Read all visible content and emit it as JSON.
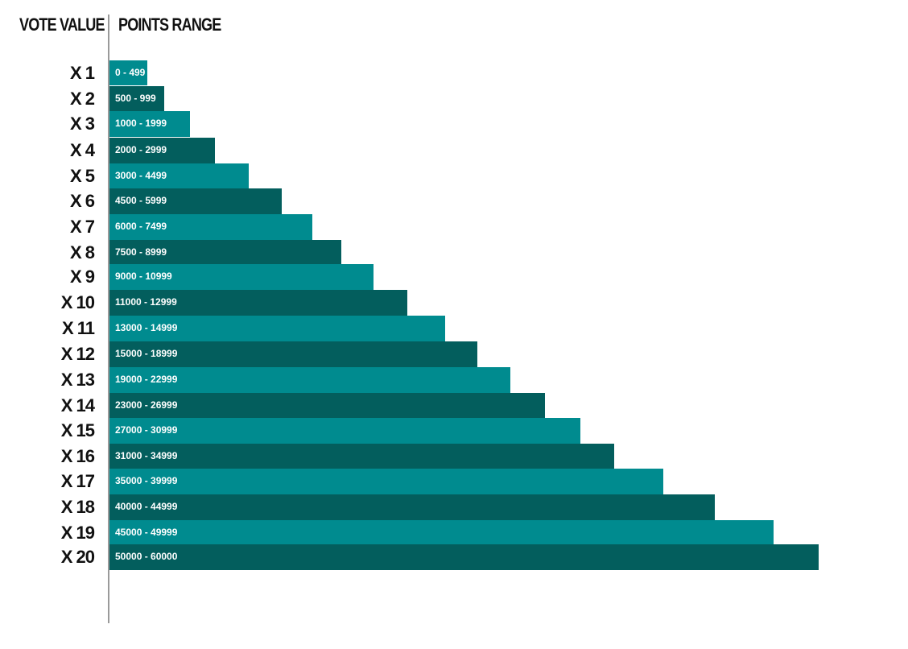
{
  "chart_data": {
    "type": "bar",
    "orientation": "horizontal",
    "headers": {
      "vote_value": "VOTE VALUE",
      "points_range": "POINTS RANGE"
    },
    "categories": [
      "X 1",
      "X 2",
      "X 3",
      "X 4",
      "X 5",
      "X 6",
      "X 7",
      "X 8",
      "X 9",
      "X 10",
      "X 11",
      "X 12",
      "X 13",
      "X 14",
      "X 15",
      "X 16",
      "X 17",
      "X 18",
      "X 19",
      "X 20"
    ],
    "range_labels": [
      "0 - 499",
      "500 - 999",
      "1000 - 1999",
      "2000 - 2999",
      "3000 - 4499",
      "4500 - 5999",
      "6000 - 7499",
      "7500 - 8999",
      "9000 - 10999",
      "11000 - 12999",
      "13000 - 14999",
      "15000 - 18999",
      "19000 - 22999",
      "23000 - 26999",
      "27000 - 30999",
      "31000 - 34999",
      "35000 - 39999",
      "40000 - 44999",
      "45000 - 49999",
      "50000 - 60000"
    ],
    "values": [
      499,
      999,
      1999,
      2999,
      4499,
      5999,
      7499,
      8999,
      10999,
      12999,
      14999,
      18999,
      22999,
      26999,
      30999,
      34999,
      39999,
      44999,
      49999,
      60000
    ],
    "colors": {
      "light": "#008b8f",
      "dark": "#035e5d",
      "text": "#111111",
      "bar_text": "#ffffff",
      "axis": "#9a9a9a"
    }
  }
}
